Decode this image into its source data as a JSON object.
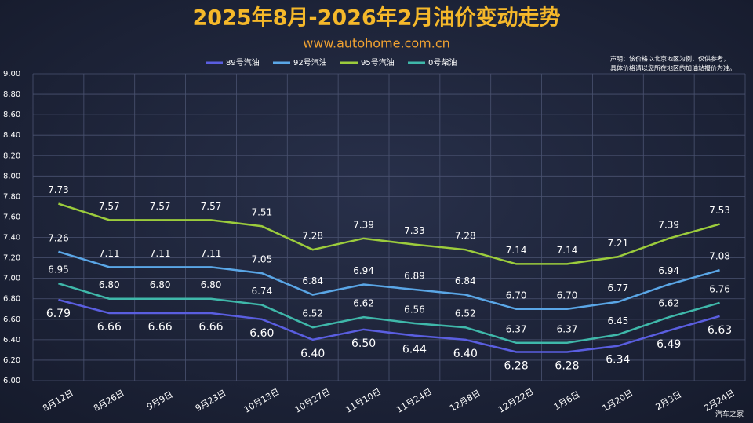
{
  "chart_data": {
    "type": "line",
    "title": "2025年8月-2026年2月油价变动走势",
    "subtitle": "www.autohome.com.cn",
    "annotations": [
      "声明：该价格以北京地区为例，仅供参考，",
      "具体价格请以您所在地区的加油站报价为准。",
      "汽车之家"
    ],
    "categories": [
      "8月12日",
      "8月26日",
      "9月9日",
      "9月23日",
      "10月13日",
      "10月27日",
      "11月10日",
      "11月24日",
      "12月8日",
      "12月22日",
      "1月6日",
      "1月20日",
      "2月3日",
      "2月24日"
    ],
    "series": [
      {
        "name": "89号汽油",
        "color": "#5a5ee0",
        "values": [
          6.79,
          6.66,
          6.66,
          6.66,
          6.6,
          6.4,
          6.5,
          6.44,
          6.4,
          6.28,
          6.28,
          6.34,
          6.49,
          6.63
        ],
        "value_labels": [
          "6.79",
          "6.66",
          "6.66",
          "6.66",
          "6.60",
          "6.40",
          "6.50",
          "6.44",
          "6.40",
          "6.28",
          "6.28",
          "6.34",
          "6.49",
          "6.63"
        ]
      },
      {
        "name": "92号汽油",
        "color": "#5aa6e6",
        "values": [
          7.26,
          7.11,
          7.11,
          7.11,
          7.05,
          6.84,
          6.94,
          6.89,
          6.84,
          6.7,
          6.7,
          6.77,
          6.94,
          7.08
        ],
        "value_labels": [
          "7.26",
          "7.11",
          "7.11",
          "7.11",
          "7.05",
          "6.84",
          "6.94",
          "6.89",
          "6.84",
          "6.70",
          "6.70",
          "6.77",
          "6.94",
          "7.08"
        ]
      },
      {
        "name": "95号汽油",
        "color": "#9ccc3c",
        "values": [
          7.73,
          7.57,
          7.57,
          7.57,
          7.51,
          7.28,
          7.39,
          7.33,
          7.28,
          7.14,
          7.14,
          7.21,
          7.39,
          7.53
        ],
        "value_labels": [
          "7.73",
          "7.57",
          "7.57",
          "7.57",
          "7.51",
          "7.28",
          "7.39",
          "7.33",
          "7.28",
          "7.14",
          "7.14",
          "7.21",
          "7.39",
          "7.53"
        ]
      },
      {
        "name": "0号柴油",
        "color": "#3fb8aa",
        "values": [
          6.95,
          6.8,
          6.8,
          6.8,
          6.74,
          6.52,
          6.62,
          6.56,
          6.52,
          6.37,
          6.37,
          6.45,
          6.62,
          6.76
        ],
        "value_labels": [
          "6.95",
          "6.80",
          "6.80",
          "6.80",
          "6.74",
          "6.52",
          "6.62",
          "6.56",
          "6.52",
          "6.37",
          "6.37",
          "6.45",
          "6.62",
          "6.76"
        ]
      }
    ],
    "ylim": [
      6,
      9
    ],
    "yticks": [
      {
        "value": 6,
        "label": "6.00"
      },
      {
        "value": 6.2,
        "label": "6.20"
      },
      {
        "value": 6.4,
        "label": "6.40"
      },
      {
        "value": 6.6,
        "label": "6.60"
      },
      {
        "value": 6.8,
        "label": "6.80"
      },
      {
        "value": 7,
        "label": "7.00"
      },
      {
        "value": 7.2,
        "label": "7.20"
      },
      {
        "value": 7.4,
        "label": "7.40"
      },
      {
        "value": 7.6,
        "label": "7.60"
      },
      {
        "value": 7.8,
        "label": "7.80"
      },
      {
        "value": 8,
        "label": "8.00"
      },
      {
        "value": 8.2,
        "label": "8.20"
      },
      {
        "value": 8.4,
        "label": "8.40"
      },
      {
        "value": 8.6,
        "label": "8.60"
      },
      {
        "value": 8.8,
        "label": "8.80"
      },
      {
        "value": 9,
        "label": "9.00"
      }
    ],
    "grid": true
  }
}
